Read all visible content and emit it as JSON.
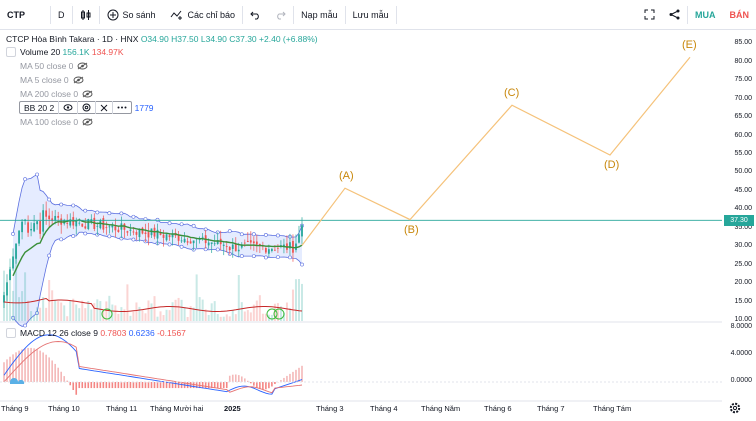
{
  "toolbar": {
    "symbol": "CTP",
    "interval": "D",
    "compare_label": "So sánh",
    "indicators_label": "Các chỉ báo",
    "templates_label": "Nạp mẫu",
    "save_label": "Lưu mẫu",
    "buy_label": "MUA",
    "sell_label": "BÁN"
  },
  "main_legend": {
    "title": "CTCP Hòa Bình Takara · 1D · HNX",
    "open": "O34.90",
    "high": "H37.50",
    "low": "L34.90",
    "close": "C37.30",
    "change": "+2.40 (+6.88%)"
  },
  "indicators": {
    "volume": {
      "name": "Volume 20",
      "v1": "156.1K",
      "v2": "134.97K"
    },
    "ma50": "MA 50 close 0",
    "ma5": "MA 5 close 0",
    "ma200": "MA 200 close 0",
    "bb": {
      "name": "BB 20 2",
      "value": "1779"
    },
    "ma100": "MA 100 close 0"
  },
  "macd_legend": {
    "name": "MACD 12 26 close 9",
    "v1": "0.7803",
    "v2": "0.6236",
    "v3": "-0.1567"
  },
  "price_axis": [
    "85.00",
    "80.00",
    "75.00",
    "70.00",
    "65.00",
    "60.00",
    "55.00",
    "50.00",
    "45.00",
    "40.00",
    "35.00",
    "30.00",
    "25.00",
    "20.00",
    "15.00",
    "10.00"
  ],
  "current_price": "37.30",
  "macd_axis": [
    "8.0000",
    "4.0000",
    "0.0000"
  ],
  "time_axis": [
    "Tháng 9",
    "Tháng 10",
    "Tháng 11",
    "Tháng Mười hai",
    "2025",
    "Tháng 3",
    "Tháng 4",
    "Tháng Năm",
    "Tháng 6",
    "Tháng 7",
    "Tháng Tám"
  ],
  "wave_labels": [
    "(A)",
    "(B)",
    "(C)",
    "(D)",
    "(E)"
  ],
  "colors": {
    "accent": "#26a69a",
    "down": "#ef5350",
    "wave": "#f5c27a",
    "bb": "#2962ff"
  },
  "chart_data": {
    "type": "line",
    "series": [
      {
        "values": [
          30.5,
          46,
          37.5,
          68.5,
          55,
          81.5
        ]
      }
    ],
    "price_range": [
      10,
      87
    ]
  }
}
